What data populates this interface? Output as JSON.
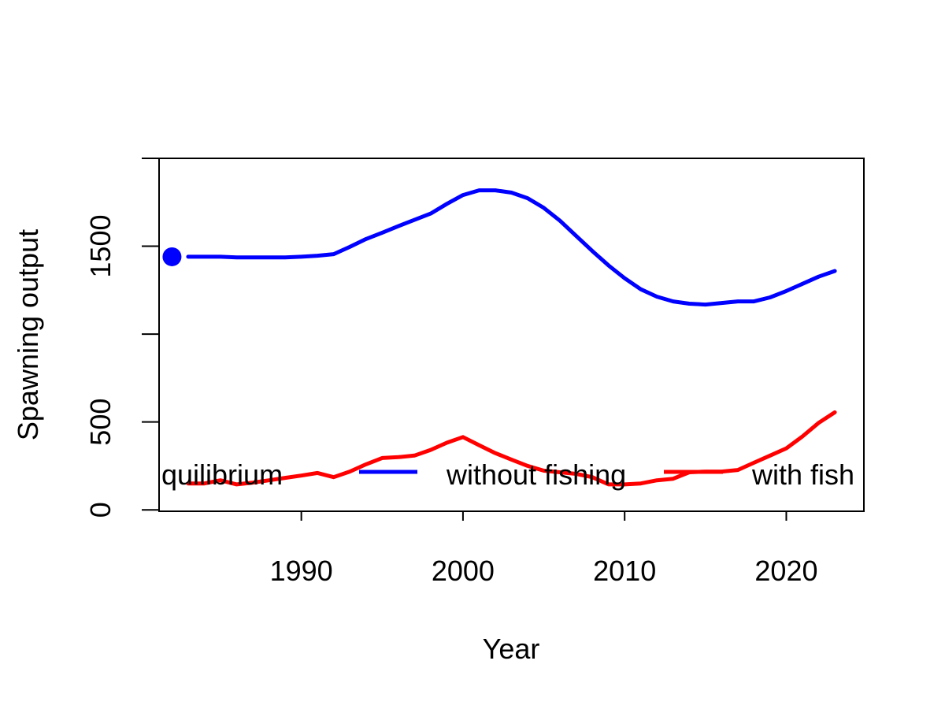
{
  "chart_data": {
    "type": "line",
    "xlabel": "Year",
    "ylabel": "Spawning output",
    "xlim": [
      1981.2,
      2024.8
    ],
    "ylim": [
      -8.0,
      2000
    ],
    "x_ticks": [
      1990,
      2000,
      2010,
      2020
    ],
    "x_tick_labels": [
      "1990",
      "2000",
      "2010",
      "2020"
    ],
    "y_ticks": [
      0,
      500,
      1000,
      1500,
      2000
    ],
    "y_tick_labels": [
      "0",
      "500",
      "",
      "1500",
      ""
    ],
    "grid": false,
    "legend": {
      "placement": "bottom",
      "entries": [
        {
          "label": "quilibrium",
          "color": "#0000ff",
          "symbol": "point"
        },
        {
          "label": "without fishing",
          "color": "#0000ff",
          "symbol": "line"
        },
        {
          "label": "with fish",
          "color": "#ff0000",
          "symbol": "line"
        }
      ]
    },
    "series": [
      {
        "name": "equilibrium",
        "color": "#0000ff",
        "kind": "point",
        "x": [
          1982
        ],
        "y": [
          1440
        ]
      },
      {
        "name": "without fishing",
        "color": "#0000ff",
        "kind": "line",
        "x": [
          1983,
          1984,
          1985,
          1986,
          1987,
          1988,
          1989,
          1990,
          1991,
          1992,
          1993,
          1994,
          1995,
          1996,
          1997,
          1998,
          1999,
          2000,
          2001,
          2002,
          2003,
          2004,
          2005,
          2006,
          2007,
          2008,
          2009,
          2010,
          2011,
          2012,
          2013,
          2014,
          2015,
          2016,
          2017,
          2018,
          2019,
          2020,
          2021,
          2022,
          2023
        ],
        "y": [
          1440,
          1440,
          1440,
          1436,
          1436,
          1436,
          1436,
          1440,
          1446,
          1455,
          1496,
          1541,
          1577,
          1614,
          1650,
          1686,
          1741,
          1791,
          1818,
          1818,
          1805,
          1773,
          1718,
          1645,
          1559,
          1473,
          1391,
          1318,
          1255,
          1213,
          1186,
          1173,
          1168,
          1177,
          1186,
          1186,
          1209,
          1245,
          1286,
          1327,
          1359
        ]
      },
      {
        "name": "with fishing",
        "color": "#ff0000",
        "kind": "line",
        "x": [
          1983,
          1984,
          1985,
          1986,
          1987,
          1988,
          1989,
          1990,
          1991,
          1992,
          1993,
          1994,
          1995,
          1996,
          1997,
          1998,
          1999,
          2000,
          2001,
          2002,
          2003,
          2004,
          2005,
          2006,
          2007,
          2008,
          2009,
          2010,
          2011,
          2012,
          2013,
          2014,
          2015,
          2016,
          2017,
          2018,
          2019,
          2020,
          2021,
          2022,
          2023
        ],
        "y": [
          150,
          150,
          168,
          145,
          155,
          168,
          182,
          195,
          210,
          186,
          218,
          259,
          295,
          300,
          309,
          341,
          382,
          414,
          368,
          323,
          286,
          250,
          223,
          214,
          205,
          186,
          145,
          145,
          150,
          168,
          177,
          214,
          218,
          218,
          227,
          268,
          309,
          350,
          418,
          495,
          555
        ]
      }
    ]
  }
}
